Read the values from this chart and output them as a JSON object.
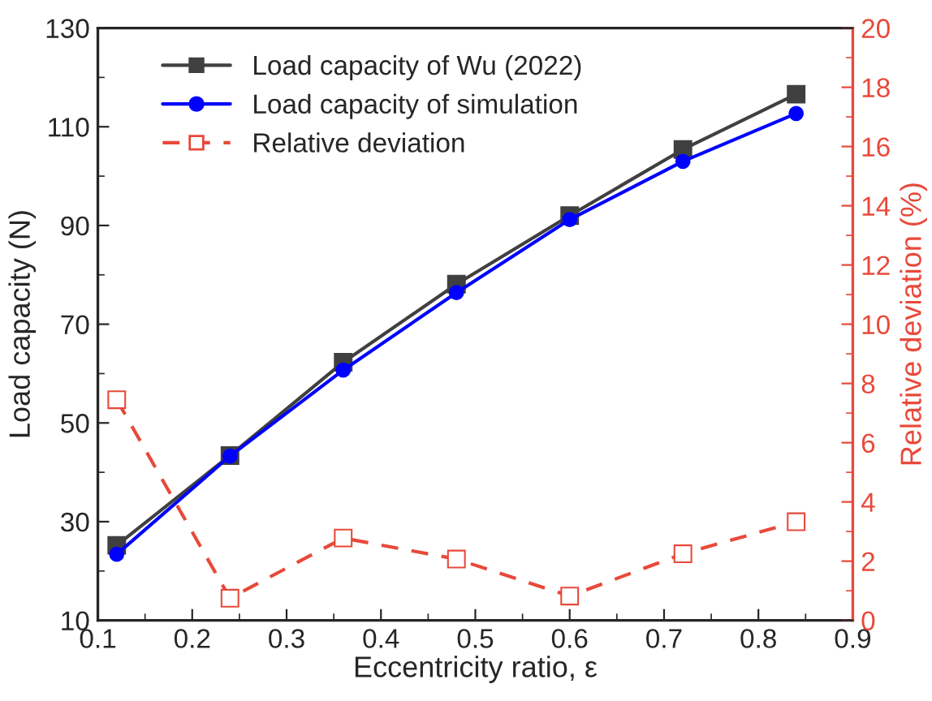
{
  "chart_data": {
    "type": "line",
    "xlabel": "Eccentricity ratio, ε",
    "ylabel": "Load capacity (N)",
    "y2label": "Relative deviation (%)",
    "x": [
      0.12,
      0.24,
      0.36,
      0.48,
      0.6,
      0.72,
      0.84
    ],
    "series": [
      {
        "name": "Load capacity of Wu (2022)",
        "color": "#404040",
        "marker": "square",
        "line_style": "solid",
        "values": [
          25.2,
          43.4,
          62.3,
          78.1,
          92.0,
          105.4,
          116.6
        ]
      },
      {
        "name": "Load capacity of simulation",
        "color": "#0000ff",
        "marker": "circle",
        "line_style": "solid",
        "values": [
          23.4,
          43.3,
          60.7,
          76.4,
          91.2,
          103.0,
          112.7
        ]
      },
      {
        "name": "Relative deviation",
        "color": "#e8493a",
        "marker": "square",
        "line_style": "dashed",
        "axis": "y2",
        "values": [
          7.45,
          0.75,
          2.78,
          2.07,
          0.82,
          2.25,
          3.33
        ]
      }
    ],
    "xlim": [
      0.1,
      0.9
    ],
    "xticks": [
      0.1,
      0.2,
      0.3,
      0.4,
      0.5,
      0.6,
      0.7,
      0.8,
      0.9
    ],
    "ylim": [
      10,
      130
    ],
    "yticks": [
      10,
      30,
      50,
      70,
      90,
      110,
      130
    ],
    "y2lim": [
      0,
      20
    ],
    "y2ticks": [
      0,
      2,
      4,
      6,
      8,
      10,
      12,
      14,
      16,
      18,
      20
    ],
    "grid": false,
    "legend": "top left"
  }
}
